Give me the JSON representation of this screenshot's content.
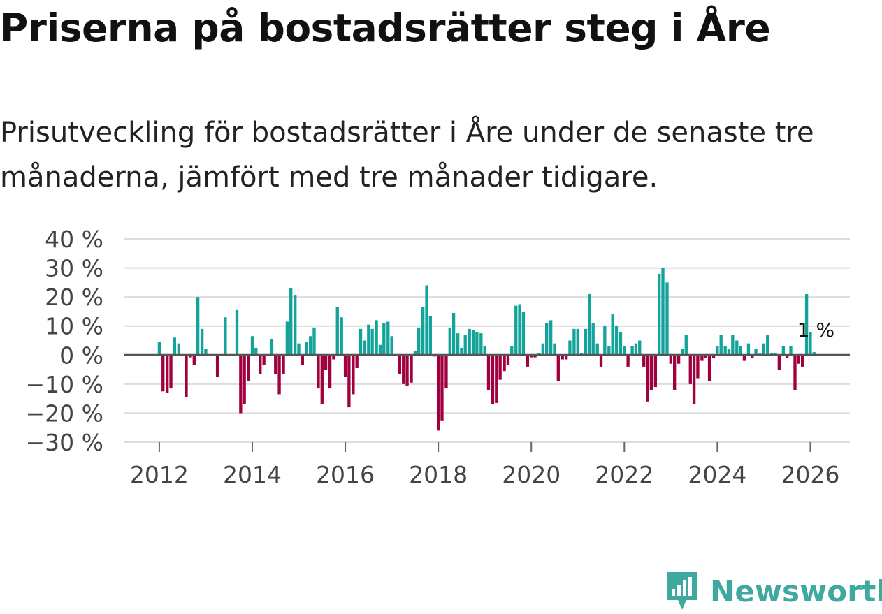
{
  "header": {
    "title": "Priserna på bostadsrätter steg i Åre",
    "subtitle": "Prisutveckling för bostadsrätter i Åre under de senaste tre månaderna, jämfört med tre månader tidigare."
  },
  "colors": {
    "positive": "#12a39a",
    "negative": "#a0003e",
    "grid": "#dcdcdc",
    "zero_line": "#555555",
    "brand": "#3fa9a0"
  },
  "brand": {
    "name": "Newsworthy",
    "icon": "newsworthy-logo-icon"
  },
  "chart_data": {
    "type": "bar",
    "title": "Priserna på bostadsrätter steg i Åre",
    "ylim": [
      -30,
      40
    ],
    "xlim": [
      2011.25,
      2026.85
    ],
    "y_ticks": [
      40,
      30,
      20,
      10,
      0,
      -10,
      -20,
      -30
    ],
    "y_tick_labels": [
      "40 %",
      "30 %",
      "20 %",
      "10 %",
      "0 %",
      "−10 %",
      "−20 %",
      "−30 %"
    ],
    "x_ticks": [
      2012,
      2014,
      2016,
      2018,
      2020,
      2022,
      2024,
      2026
    ],
    "x_tick_labels": [
      "2012",
      "2014",
      "2016",
      "2018",
      "2020",
      "2022",
      "2024",
      "2026"
    ],
    "grid": true,
    "annotation": {
      "text": "1 %",
      "x": 2026.0,
      "y": 1
    },
    "bars": [
      {
        "x": 2012.0,
        "y": 4.5
      },
      {
        "x": 2012.08,
        "y": -12.5
      },
      {
        "x": 2012.17,
        "y": -13
      },
      {
        "x": 2012.25,
        "y": -11.5
      },
      {
        "x": 2012.33,
        "y": 6
      },
      {
        "x": 2012.42,
        "y": 4
      },
      {
        "x": 2012.58,
        "y": -14.5
      },
      {
        "x": 2012.67,
        "y": -0.8
      },
      {
        "x": 2012.75,
        "y": -3.5
      },
      {
        "x": 2012.83,
        "y": 20
      },
      {
        "x": 2012.92,
        "y": 9
      },
      {
        "x": 2013.0,
        "y": 2
      },
      {
        "x": 2013.25,
        "y": -7.5
      },
      {
        "x": 2013.42,
        "y": 13
      },
      {
        "x": 2013.67,
        "y": 15.5
      },
      {
        "x": 2013.75,
        "y": -20
      },
      {
        "x": 2013.83,
        "y": -17
      },
      {
        "x": 2013.92,
        "y": -9
      },
      {
        "x": 2014.0,
        "y": 6.5
      },
      {
        "x": 2014.08,
        "y": 2.5
      },
      {
        "x": 2014.17,
        "y": -6.5
      },
      {
        "x": 2014.25,
        "y": -3.5
      },
      {
        "x": 2014.42,
        "y": 5.5
      },
      {
        "x": 2014.5,
        "y": -6.5
      },
      {
        "x": 2014.58,
        "y": -13.5
      },
      {
        "x": 2014.67,
        "y": -6.5
      },
      {
        "x": 2014.75,
        "y": 11.5
      },
      {
        "x": 2014.83,
        "y": 23
      },
      {
        "x": 2014.92,
        "y": 20.5
      },
      {
        "x": 2015.0,
        "y": 4
      },
      {
        "x": 2015.08,
        "y": -3.5
      },
      {
        "x": 2015.17,
        "y": 4.5
      },
      {
        "x": 2015.25,
        "y": 6.5
      },
      {
        "x": 2015.33,
        "y": 9.5
      },
      {
        "x": 2015.42,
        "y": -11.5
      },
      {
        "x": 2015.5,
        "y": -17
      },
      {
        "x": 2015.58,
        "y": -5
      },
      {
        "x": 2015.67,
        "y": -11.5
      },
      {
        "x": 2015.75,
        "y": -1.5
      },
      {
        "x": 2015.83,
        "y": 16.5
      },
      {
        "x": 2015.92,
        "y": 13
      },
      {
        "x": 2016.0,
        "y": -7.5
      },
      {
        "x": 2016.08,
        "y": -18
      },
      {
        "x": 2016.17,
        "y": -13.5
      },
      {
        "x": 2016.25,
        "y": -4.5
      },
      {
        "x": 2016.33,
        "y": 9
      },
      {
        "x": 2016.42,
        "y": 5
      },
      {
        "x": 2016.5,
        "y": 10.5
      },
      {
        "x": 2016.58,
        "y": 9
      },
      {
        "x": 2016.67,
        "y": 12
      },
      {
        "x": 2016.75,
        "y": 3.5
      },
      {
        "x": 2016.83,
        "y": 11
      },
      {
        "x": 2016.92,
        "y": 11.5
      },
      {
        "x": 2017.0,
        "y": 6.5
      },
      {
        "x": 2017.17,
        "y": -6.5
      },
      {
        "x": 2017.25,
        "y": -10
      },
      {
        "x": 2017.33,
        "y": -10.5
      },
      {
        "x": 2017.42,
        "y": -9.5
      },
      {
        "x": 2017.5,
        "y": 1.5
      },
      {
        "x": 2017.58,
        "y": 9.5
      },
      {
        "x": 2017.67,
        "y": 16.5
      },
      {
        "x": 2017.75,
        "y": 24
      },
      {
        "x": 2017.83,
        "y": 13.5
      },
      {
        "x": 2017.92,
        "y": -0.5
      },
      {
        "x": 2018.0,
        "y": -26
      },
      {
        "x": 2018.08,
        "y": -22.5
      },
      {
        "x": 2018.17,
        "y": -11.5
      },
      {
        "x": 2018.25,
        "y": 9.5
      },
      {
        "x": 2018.33,
        "y": 14.5
      },
      {
        "x": 2018.42,
        "y": 7.5
      },
      {
        "x": 2018.5,
        "y": 2.5
      },
      {
        "x": 2018.58,
        "y": 7
      },
      {
        "x": 2018.67,
        "y": 9
      },
      {
        "x": 2018.75,
        "y": 8.5
      },
      {
        "x": 2018.83,
        "y": 8
      },
      {
        "x": 2018.92,
        "y": 7.5
      },
      {
        "x": 2019.0,
        "y": 3
      },
      {
        "x": 2019.08,
        "y": -12
      },
      {
        "x": 2019.17,
        "y": -17
      },
      {
        "x": 2019.25,
        "y": -16.5
      },
      {
        "x": 2019.33,
        "y": -8.5
      },
      {
        "x": 2019.42,
        "y": -5.5
      },
      {
        "x": 2019.5,
        "y": -3.5
      },
      {
        "x": 2019.58,
        "y": 3
      },
      {
        "x": 2019.67,
        "y": 17
      },
      {
        "x": 2019.75,
        "y": 17.5
      },
      {
        "x": 2019.83,
        "y": 15
      },
      {
        "x": 2019.92,
        "y": -4
      },
      {
        "x": 2020.0,
        "y": -0.8
      },
      {
        "x": 2020.08,
        "y": -0.8
      },
      {
        "x": 2020.17,
        "y": 0.8
      },
      {
        "x": 2020.25,
        "y": 4
      },
      {
        "x": 2020.33,
        "y": 11
      },
      {
        "x": 2020.42,
        "y": 12
      },
      {
        "x": 2020.5,
        "y": 4
      },
      {
        "x": 2020.58,
        "y": -9
      },
      {
        "x": 2020.67,
        "y": -1.5
      },
      {
        "x": 2020.75,
        "y": -1.5
      },
      {
        "x": 2020.83,
        "y": 5
      },
      {
        "x": 2020.92,
        "y": 9
      },
      {
        "x": 2021.0,
        "y": 9
      },
      {
        "x": 2021.08,
        "y": 0.8
      },
      {
        "x": 2021.17,
        "y": 9
      },
      {
        "x": 2021.25,
        "y": 21
      },
      {
        "x": 2021.33,
        "y": 11
      },
      {
        "x": 2021.42,
        "y": 4
      },
      {
        "x": 2021.5,
        "y": -4
      },
      {
        "x": 2021.58,
        "y": 10
      },
      {
        "x": 2021.67,
        "y": 3
      },
      {
        "x": 2021.75,
        "y": 14
      },
      {
        "x": 2021.83,
        "y": 10
      },
      {
        "x": 2021.92,
        "y": 8
      },
      {
        "x": 2022.0,
        "y": 3
      },
      {
        "x": 2022.08,
        "y": -4
      },
      {
        "x": 2022.17,
        "y": 3
      },
      {
        "x": 2022.25,
        "y": 4
      },
      {
        "x": 2022.33,
        "y": 5
      },
      {
        "x": 2022.42,
        "y": -4
      },
      {
        "x": 2022.5,
        "y": -16
      },
      {
        "x": 2022.58,
        "y": -12
      },
      {
        "x": 2022.67,
        "y": -11
      },
      {
        "x": 2022.75,
        "y": 28
      },
      {
        "x": 2022.83,
        "y": 30
      },
      {
        "x": 2022.92,
        "y": 25
      },
      {
        "x": 2023.0,
        "y": -3
      },
      {
        "x": 2023.08,
        "y": -12
      },
      {
        "x": 2023.17,
        "y": -3
      },
      {
        "x": 2023.25,
        "y": 2
      },
      {
        "x": 2023.33,
        "y": 7
      },
      {
        "x": 2023.42,
        "y": -10
      },
      {
        "x": 2023.5,
        "y": -17
      },
      {
        "x": 2023.58,
        "y": -8
      },
      {
        "x": 2023.67,
        "y": -2
      },
      {
        "x": 2023.75,
        "y": -1
      },
      {
        "x": 2023.83,
        "y": -9
      },
      {
        "x": 2023.92,
        "y": -1
      },
      {
        "x": 2024.0,
        "y": 3
      },
      {
        "x": 2024.08,
        "y": 7
      },
      {
        "x": 2024.17,
        "y": 3
      },
      {
        "x": 2024.25,
        "y": 2
      },
      {
        "x": 2024.33,
        "y": 7
      },
      {
        "x": 2024.42,
        "y": 5
      },
      {
        "x": 2024.5,
        "y": 3
      },
      {
        "x": 2024.58,
        "y": -2
      },
      {
        "x": 2024.67,
        "y": 4
      },
      {
        "x": 2024.75,
        "y": -1
      },
      {
        "x": 2024.83,
        "y": 2
      },
      {
        "x": 2024.92,
        "y": 0.5
      },
      {
        "x": 2025.0,
        "y": 4
      },
      {
        "x": 2025.08,
        "y": 7
      },
      {
        "x": 2025.17,
        "y": 0.8
      },
      {
        "x": 2025.25,
        "y": 0.8
      },
      {
        "x": 2025.33,
        "y": -5
      },
      {
        "x": 2025.42,
        "y": 3
      },
      {
        "x": 2025.5,
        "y": -1
      },
      {
        "x": 2025.58,
        "y": 3
      },
      {
        "x": 2025.67,
        "y": -12
      },
      {
        "x": 2025.75,
        "y": -3
      },
      {
        "x": 2025.83,
        "y": -4
      },
      {
        "x": 2025.92,
        "y": 21
      },
      {
        "x": 2026.0,
        "y": 8
      },
      {
        "x": 2026.08,
        "y": 1
      }
    ]
  }
}
